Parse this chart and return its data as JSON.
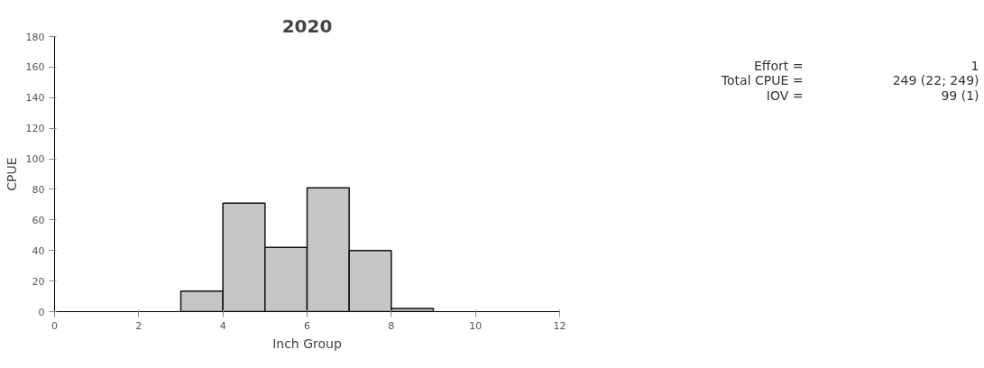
{
  "chart_data": {
    "type": "histogram",
    "title": "2020",
    "xlabel": "Inch Group",
    "ylabel": "CPUE",
    "bins": [
      3,
      4,
      5,
      6,
      7,
      8,
      9
    ],
    "values": [
      13.5,
      71,
      42,
      81,
      40,
      2
    ],
    "color": "#c6c6c6",
    "xlim": [
      0,
      12
    ],
    "xticks": [
      0,
      2,
      4,
      6,
      8,
      10,
      12
    ],
    "ylim": [
      0,
      180
    ],
    "yticks": [
      0,
      20,
      40,
      60,
      80,
      100,
      120,
      140,
      160,
      180
    ],
    "grid": false,
    "annotations": [
      "Effort =",
      "1",
      "Total CPUE =",
      "249 (22; 249)",
      "IOV =",
      "99 (1)"
    ]
  }
}
